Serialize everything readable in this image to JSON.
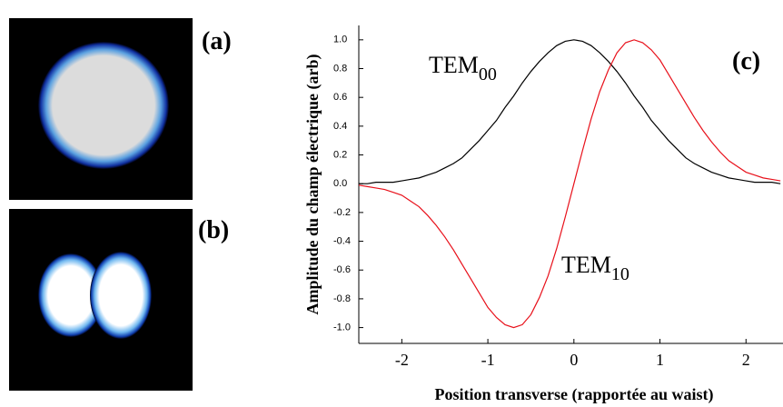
{
  "chart_data": {
    "type": "line",
    "panel_labels": [
      "(a)",
      "(b)",
      "(c)"
    ],
    "xlabel": "Position transverse (rapportée au waist)",
    "ylabel": "Amplitude du champ électrique (arb)",
    "annotations": [
      {
        "text": "TEM",
        "sub": "00"
      },
      {
        "text": "TEM",
        "sub": "10"
      }
    ],
    "x": [
      -2.5,
      -2.4,
      -2.3,
      -2.2,
      -2.1,
      -2.0,
      -1.9,
      -1.8,
      -1.7,
      -1.6,
      -1.5,
      -1.4,
      -1.3,
      -1.2,
      -1.1,
      -1.0,
      -0.9,
      -0.8,
      -0.7,
      -0.6,
      -0.5,
      -0.4,
      -0.3,
      -0.2,
      -0.1,
      0,
      0.1,
      0.2,
      0.3,
      0.4,
      0.5,
      0.6,
      0.7,
      0.8,
      0.9,
      1.0,
      1.1,
      1.2,
      1.3,
      1.4,
      1.5,
      1.6,
      1.7,
      1.8,
      1.9,
      2.0,
      2.1,
      2.2,
      2.3,
      2.4
    ],
    "series": [
      {
        "color": "#000000",
        "values": [
          0.0,
          0.0,
          0.01,
          0.01,
          0.01,
          0.02,
          0.03,
          0.04,
          0.06,
          0.08,
          0.11,
          0.14,
          0.18,
          0.24,
          0.3,
          0.37,
          0.44,
          0.53,
          0.61,
          0.7,
          0.78,
          0.85,
          0.91,
          0.96,
          0.99,
          1.0,
          0.99,
          0.96,
          0.91,
          0.85,
          0.78,
          0.7,
          0.61,
          0.53,
          0.44,
          0.37,
          0.3,
          0.24,
          0.18,
          0.14,
          0.11,
          0.08,
          0.06,
          0.04,
          0.03,
          0.02,
          0.01,
          0.01,
          0.01,
          0.0
        ]
      },
      {
        "color": "#e8101a",
        "values": [
          -0.01,
          -0.02,
          -0.03,
          -0.04,
          -0.06,
          -0.08,
          -0.12,
          -0.16,
          -0.22,
          -0.29,
          -0.37,
          -0.46,
          -0.56,
          -0.66,
          -0.76,
          -0.86,
          -0.93,
          -0.98,
          -1.0,
          -0.98,
          -0.91,
          -0.79,
          -0.64,
          -0.45,
          -0.23,
          0,
          0.23,
          0.45,
          0.64,
          0.79,
          0.91,
          0.98,
          1.0,
          0.98,
          0.93,
          0.86,
          0.76,
          0.66,
          0.56,
          0.46,
          0.37,
          0.29,
          0.22,
          0.16,
          0.12,
          0.08,
          0.06,
          0.04,
          0.03,
          0.02
        ]
      }
    ],
    "xlim": [
      -2.5,
      2.43
    ],
    "ylim": [
      -1.11,
      1.1
    ],
    "xticks": [
      -2,
      -1,
      0,
      1,
      2
    ],
    "yticks": [
      {
        "value": -1.0,
        "label": "-1.0"
      },
      -0.8,
      -0.6,
      -0.4,
      -0.2,
      {
        "value": 0.0,
        "label": "0.0"
      },
      0.2,
      0.4,
      0.6,
      0.8,
      {
        "value": 1.0,
        "label": "1.0"
      }
    ]
  }
}
